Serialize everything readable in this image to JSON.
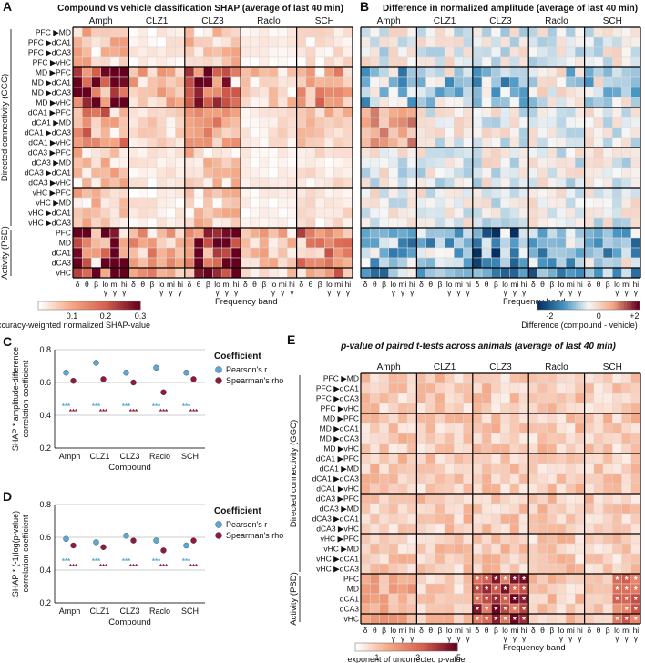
{
  "chart_data": [
    {
      "id": "A",
      "type": "heatmap",
      "panel_label": "A",
      "title": "Compound vs vehicle classification SHAP (average of last 40 min)",
      "compounds": [
        "Amph",
        "CLZ1",
        "CLZ3",
        "Raclo",
        "SCH"
      ],
      "bands": [
        "δ",
        "θ",
        "β",
        "lo γ",
        "mi γ",
        "hi γ"
      ],
      "row_groups": [
        {
          "label": "Directed connectivity (GGC)",
          "rows": [
            "PFC ▶MD",
            "PFC ▶dCA1",
            "PFC ▶dCA3",
            "PFC ▶vHC",
            "MD ▶PFC",
            "MD ▶dCA1",
            "MD ▶dCA3",
            "MD ▶vHC",
            "dCA1 ▶PFC",
            "dCA1 ▶MD",
            "dCA1 ▶dCA3",
            "dCA1 ▶vHC",
            "dCA3 ▶PFC",
            "dCA3 ▶MD",
            "dCA3 ▶dCA1",
            "dCA3 ▶vHC",
            "vHC ▶PFC",
            "vHC ▶MD",
            "vHC ▶dCA1",
            "vHC ▶dCA3"
          ]
        },
        {
          "label": "Activity (PSD)",
          "rows": [
            "PFC",
            "MD",
            "dCA1",
            "dCA3",
            "vHC"
          ]
        }
      ],
      "xlabel": "Frequency band",
      "colorbar": {
        "ticks": [
          "0.1",
          "0.2",
          "0.3"
        ],
        "range": [
          0,
          0.3
        ],
        "label": "Accuracy-weighted normalized SHAP-value",
        "colors": [
          "#ffffff",
          "#f4a582",
          "#d6604d",
          "#67001f"
        ]
      },
      "values": "approximate, generated from estimated pattern: Amph and CLZ3 strongest; PSD rows and MD▶PFC row strongest"
    },
    {
      "id": "B",
      "type": "heatmap",
      "panel_label": "B",
      "title": "Difference in normalized amplitude (average of last 40 min)",
      "compounds": [
        "Amph",
        "CLZ1",
        "CLZ3",
        "Raclo",
        "SCH"
      ],
      "bands": [
        "δ",
        "θ",
        "β",
        "lo γ",
        "mi γ",
        "hi γ"
      ],
      "xlabel": "Frequency band",
      "colorbar": {
        "ticks": [
          "-2",
          "0",
          "+2"
        ],
        "range": [
          -2,
          2
        ],
        "label": "Difference (compound - vehicle)",
        "colors": [
          "#053061",
          "#4393c3",
          "#f7f7f7",
          "#f4a582",
          "#67001f"
        ]
      }
    },
    {
      "id": "C",
      "type": "scatter",
      "panel_label": "C",
      "ylabel": "SHAP * amplitude-difference correlation coefficient",
      "xlabel": "Compound",
      "categories": [
        "Amph",
        "CLZ1",
        "CLZ3",
        "Raclo",
        "SCH"
      ],
      "ylim": [
        0.2,
        0.8
      ],
      "yticks": [
        "0.2",
        "0.4",
        "0.6",
        "0.8"
      ],
      "legend_title": "Coefficient",
      "series": [
        {
          "name": "Pearson's r",
          "color": "#5aa8d8",
          "values": [
            0.66,
            0.72,
            0.66,
            0.69,
            0.66
          ],
          "sig": "***"
        },
        {
          "name": "Spearman's rho",
          "color": "#8e1b3c",
          "values": [
            0.61,
            0.62,
            0.6,
            0.54,
            0.62
          ],
          "sig": "***"
        }
      ]
    },
    {
      "id": "D",
      "type": "scatter",
      "panel_label": "D",
      "ylabel": "SHAP * (-1)log(p-value) correlation coefficient",
      "xlabel": "Compound",
      "categories": [
        "Amph",
        "CLZ1",
        "CLZ3",
        "Raclo",
        "SCH"
      ],
      "ylim": [
        0.2,
        0.8
      ],
      "yticks": [
        "0.2",
        "0.4",
        "0.6",
        "0.8"
      ],
      "legend_title": "Coefficient",
      "series": [
        {
          "name": "Pearson's r",
          "color": "#5aa8d8",
          "values": [
            0.59,
            0.57,
            0.61,
            0.58,
            0.55
          ],
          "sig": "***"
        },
        {
          "name": "Spearman's rho",
          "color": "#8e1b3c",
          "values": [
            0.55,
            0.54,
            0.58,
            0.52,
            0.58
          ],
          "sig": "***"
        }
      ]
    },
    {
      "id": "E",
      "type": "heatmap",
      "panel_label": "E",
      "title": "p-value of paired t-tests across animals (average of last 40 min)",
      "compounds": [
        "Amph",
        "CLZ1",
        "CLZ3",
        "Raclo",
        "SCH"
      ],
      "bands": [
        "δ",
        "θ",
        "β",
        "lo γ",
        "mi γ",
        "hi γ"
      ],
      "xlabel": "Frequency band",
      "significance_marker": "*",
      "colorbar": {
        "ticks": [
          "-1",
          "-3",
          "-5"
        ],
        "range": [
          0,
          -5
        ],
        "label": "exponent of uncorrected p-value",
        "colors": [
          "#ffffff",
          "#f4a582",
          "#d6604d",
          "#67001f"
        ]
      }
    }
  ]
}
